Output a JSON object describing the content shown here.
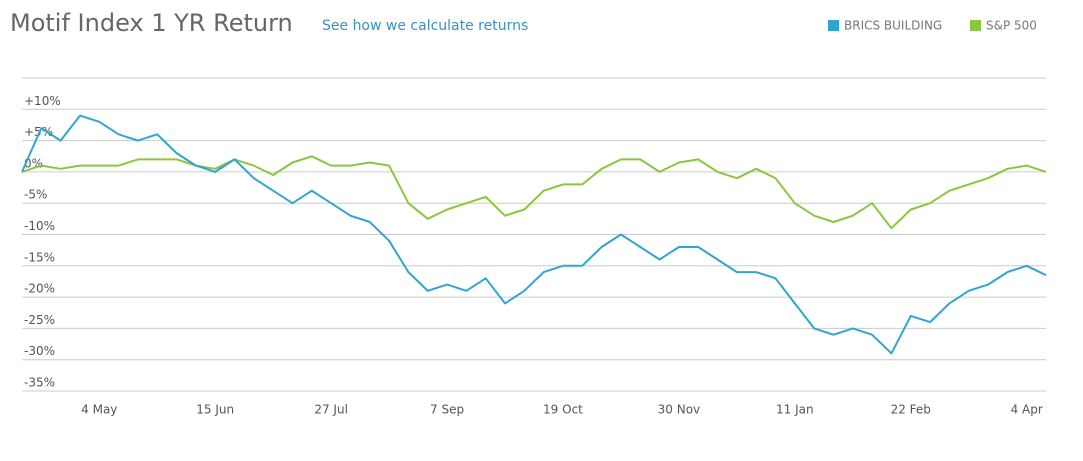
{
  "chart_data": {
    "type": "line",
    "title": "Motif Index 1 YR Return",
    "link": "See how we calculate returns",
    "categories": [
      null,
      null,
      null,
      null,
      "4 May",
      null,
      null,
      null,
      null,
      null,
      "15 Jun",
      null,
      null,
      null,
      null,
      null,
      "27 Jul",
      null,
      null,
      null,
      null,
      null,
      "7 Sep",
      null,
      null,
      null,
      null,
      null,
      "19 Oct",
      null,
      null,
      null,
      null,
      null,
      "30 Nov",
      null,
      null,
      null,
      null,
      null,
      "11 Jan",
      null,
      null,
      null,
      null,
      null,
      "22 Feb",
      null,
      null,
      null,
      null,
      null,
      "4 Apr",
      null
    ],
    "series": [
      {
        "name": "BRICS BUILDING",
        "color": "#2fa6d0",
        "values": [
          0,
          7,
          5,
          9,
          8,
          6,
          5,
          6,
          3,
          1,
          0,
          2,
          -1,
          -3,
          -5,
          -3,
          -5,
          -7,
          -8,
          -11,
          -16,
          -19,
          -18,
          -19,
          -17,
          -21,
          -19,
          -16,
          -15,
          -15,
          -12,
          -10,
          -12,
          -14,
          -12,
          -12,
          -14,
          -16,
          -16,
          -17,
          -21,
          -25,
          -26,
          -25,
          -26,
          -29,
          -23,
          -24,
          -21,
          -19,
          -18,
          -16,
          -15,
          -16.5
        ]
      },
      {
        "name": "S&P 500",
        "color": "#8cc63f",
        "values": [
          0,
          1,
          0.5,
          1,
          1,
          1,
          2,
          2,
          2,
          1,
          0.5,
          2,
          1,
          -0.5,
          1.5,
          2.5,
          1,
          1,
          1.5,
          1,
          -5,
          -7.5,
          -6,
          -5,
          -4,
          -7,
          -6,
          -3,
          -2,
          -2,
          0.5,
          2,
          2,
          0,
          1.5,
          2,
          0,
          -1,
          0.5,
          -1,
          -5,
          -7,
          -8,
          -7,
          -5,
          -9,
          -6,
          -5,
          -3,
          -2,
          -1,
          0.5,
          1,
          0
        ]
      }
    ],
    "ylim": [
      -35,
      15
    ],
    "yticks": [
      {
        "value": -35,
        "label": "-35%"
      },
      {
        "value": -30,
        "label": "-30%"
      },
      {
        "value": -25,
        "label": "-25%"
      },
      {
        "value": -20,
        "label": "-20%"
      },
      {
        "value": -15,
        "label": "-15%"
      },
      {
        "value": -10,
        "label": "-10%"
      },
      {
        "value": -5,
        "label": "-5%"
      },
      {
        "value": 0,
        "label": "0%"
      },
      {
        "value": 5,
        "label": "+5%"
      },
      {
        "value": 10,
        "label": "+10%"
      }
    ],
    "grid": true,
    "legend": "top-right"
  }
}
